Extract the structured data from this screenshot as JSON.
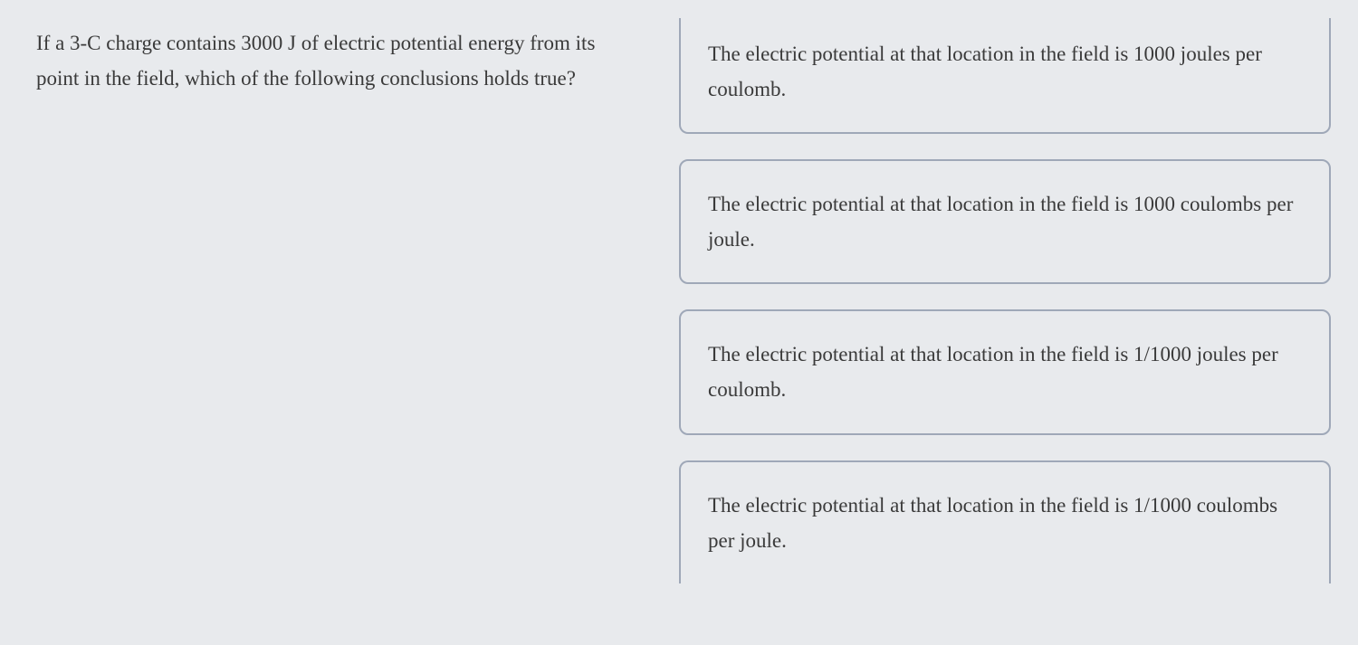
{
  "question": {
    "text": "If a 3-C charge contains 3000 J of electric potential energy from its point in the field, which of the following conclusions holds true?",
    "fontsize": 23,
    "color": "#3a3a3a"
  },
  "options": [
    {
      "text": "The electric potential at that location in the field is 1000 joules per coulomb."
    },
    {
      "text": "The electric potential at that location in the field is 1000 coulombs per joule."
    },
    {
      "text": "The electric potential at that location in the field is 1/1000 joules per coulomb."
    },
    {
      "text": "The electric potential at that location in the field is 1/1000 coulombs per joule."
    }
  ],
  "styling": {
    "background_color": "#e8eaed",
    "option_border_color": "#9fa8b8",
    "option_border_radius": 10,
    "option_fontsize": 23,
    "text_color": "#3a3a3a",
    "font_family": "Georgia serif",
    "line_height": 1.7,
    "gap_between_options": 28
  }
}
